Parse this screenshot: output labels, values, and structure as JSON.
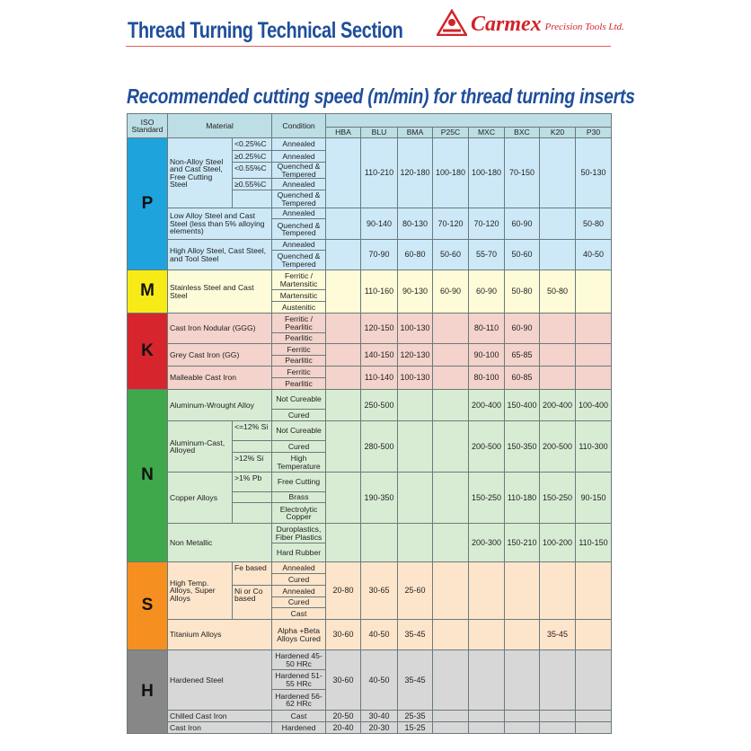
{
  "header": {
    "title": "Thread Turning Technical Section",
    "logo_brand": "Carmex",
    "logo_tagline": "Precision Tools Ltd."
  },
  "subtitle": "Recommended cutting speed (m/min) for thread turning inserts",
  "table": {
    "headers": {
      "iso": "ISO Standard",
      "material": "Material",
      "condition": "Condition",
      "grades": [
        "HBA",
        "BLU",
        "BMA",
        "P25C",
        "MXC",
        "BXC",
        "K20",
        "P30"
      ]
    },
    "groups": [
      {
        "letter": "P",
        "color": "#1fa3dc",
        "light": "#cde9f7",
        "materials": [
          {
            "name": "Non-Alloy Steel and Cast Steel, Free Cutting Steel",
            "subs": [
              {
                "label": "<0.25%C",
                "conditions": [
                  "Annealed"
                ]
              },
              {
                "label": "≥0.25%C",
                "conditions": [
                  "Annealed"
                ]
              },
              {
                "label": "<0.55%C",
                "conditions": [
                  "Quenched & Tempered"
                ]
              },
              {
                "label": "≥0.55%C",
                "conditions": [
                  "Annealed"
                ]
              },
              {
                "label": "",
                "conditions": [
                  "Quenched & Tempered"
                ]
              }
            ],
            "values": [
              "",
              "110-210",
              "120-180",
              "100-180",
              "100-180",
              "70-150",
              "",
              "50-130"
            ]
          },
          {
            "name": "Low Alloy Steel and Cast Steel (less than 5% alloying elements)",
            "conditions": [
              "Annealed",
              "Quenched & Tempered"
            ],
            "values": [
              "",
              "90-140",
              "80-130",
              "70-120",
              "70-120",
              "60-90",
              "",
              "50-80"
            ]
          },
          {
            "name": "High Alloy Steel, Cast Steel, and Tool Steel",
            "conditions": [
              "Annealed",
              "Quenched & Tempered"
            ],
            "values": [
              "",
              "70-90",
              "60-80",
              "50-60",
              "55-70",
              "50-60",
              "",
              "40-50"
            ]
          }
        ]
      },
      {
        "letter": "M",
        "color": "#f7eb17",
        "light": "#fefbd9",
        "materials": [
          {
            "name": "Stainless Steel and Cast Steel",
            "conditions": [
              "Ferritic / Martensitic",
              "Martensitic",
              "Austenitic"
            ],
            "values": [
              "",
              "110-160",
              "90-130",
              "60-90",
              "60-90",
              "50-80",
              "50-80",
              ""
            ]
          }
        ]
      },
      {
        "letter": "K",
        "color": "#d6252d",
        "light": "#f3d3cb",
        "materials": [
          {
            "name": "Cast Iron Nodular (GGG)",
            "conditions": [
              "Ferritic / Pearlitic",
              "Pearlitic"
            ],
            "values": [
              "",
              "120-150",
              "100-130",
              "",
              "80-110",
              "60-90",
              "",
              ""
            ]
          },
          {
            "name": "Grey Cast Iron (GG)",
            "conditions": [
              "Ferritic",
              "Pearlitic"
            ],
            "values": [
              "",
              "140-150",
              "120-130",
              "",
              "90-100",
              "65-85",
              "",
              ""
            ]
          },
          {
            "name": "Malleable Cast Iron",
            "conditions": [
              "Ferritic",
              "Pearlitic"
            ],
            "values": [
              "",
              "110-140",
              "100-130",
              "",
              "80-100",
              "60-85",
              "",
              ""
            ]
          }
        ]
      },
      {
        "letter": "N",
        "color": "#3ea84b",
        "light": "#d8ecd4",
        "materials": [
          {
            "name": "Aluminum-Wrought Alloy",
            "conditions": [
              "Not Cureable",
              "Cured"
            ],
            "values": [
              "",
              "250-500",
              "",
              "",
              "200-400",
              "150-400",
              "200-400",
              "100-400"
            ]
          },
          {
            "name": "Aluminum-Cast, Alloyed",
            "subs": [
              {
                "label": "<=12% Si",
                "conditions": [
                  "Not Cureable"
                ]
              },
              {
                "label": "",
                "conditions": [
                  "Cured"
                ]
              },
              {
                "label": ">12% Si",
                "conditions": [
                  "High Temperature"
                ]
              }
            ],
            "values": [
              "",
              "280-500",
              "",
              "",
              "200-500",
              "150-350",
              "200-500",
              "110-300"
            ]
          },
          {
            "name": "Copper Alloys",
            "subs": [
              {
                "label": ">1% Pb",
                "conditions": [
                  "Free Cutting"
                ]
              },
              {
                "label": "",
                "conditions": [
                  "Brass"
                ]
              },
              {
                "label": "",
                "conditions": [
                  "Electrolytic Copper"
                ]
              }
            ],
            "values": [
              "",
              "190-350",
              "",
              "",
              "150-250",
              "110-180",
              "150-250",
              "90-150"
            ]
          },
          {
            "name": "Non Metallic",
            "conditions": [
              "Duroplastics, Fiber Plastics",
              "Hard Rubber"
            ],
            "values": [
              "",
              "",
              "",
              "",
              "200-300",
              "150-210",
              "100-200",
              "110-150"
            ]
          }
        ]
      },
      {
        "letter": "S",
        "color": "#f58f1f",
        "light": "#fde5cb",
        "materials": [
          {
            "name": "High Temp. Alloys, Super Alloys",
            "subs": [
              {
                "label": "Fe based",
                "conditions": [
                  "Annealed",
                  "Cured"
                ]
              },
              {
                "label": "Ni or Co based",
                "conditions": [
                  "Annealed",
                  "Cured",
                  "Cast"
                ]
              }
            ],
            "values": [
              "20-80",
              "30-65",
              "25-60",
              "",
              "",
              "",
              "",
              ""
            ]
          },
          {
            "name": "Titanium Alloys",
            "conditions": [
              "Alpha +Beta Alloys Cured"
            ],
            "values": [
              "30-60",
              "40-50",
              "35-45",
              "",
              "",
              "",
              "35-45",
              ""
            ]
          }
        ]
      },
      {
        "letter": "H",
        "color": "#878787",
        "light": "#d7d7d7",
        "materials": [
          {
            "name": "Hardened Steel",
            "conditions": [
              "Hardened 45-50 HRc",
              "Hardened 51-55 HRc",
              "Hardened 56-62 HRc"
            ],
            "values": [
              "30-60",
              "40-50",
              "35-45",
              "",
              "",
              "",
              "",
              ""
            ]
          },
          {
            "name": "Chilled Cast Iron",
            "conditions": [
              "Cast"
            ],
            "values": [
              "20-50",
              "30-40",
              "25-35",
              "",
              "",
              "",
              "",
              ""
            ]
          },
          {
            "name": "Cast Iron",
            "conditions": [
              "Hardened"
            ],
            "values": [
              "20-40",
              "20-30",
              "15-25",
              "",
              "",
              "",
              "",
              ""
            ]
          }
        ]
      }
    ]
  }
}
